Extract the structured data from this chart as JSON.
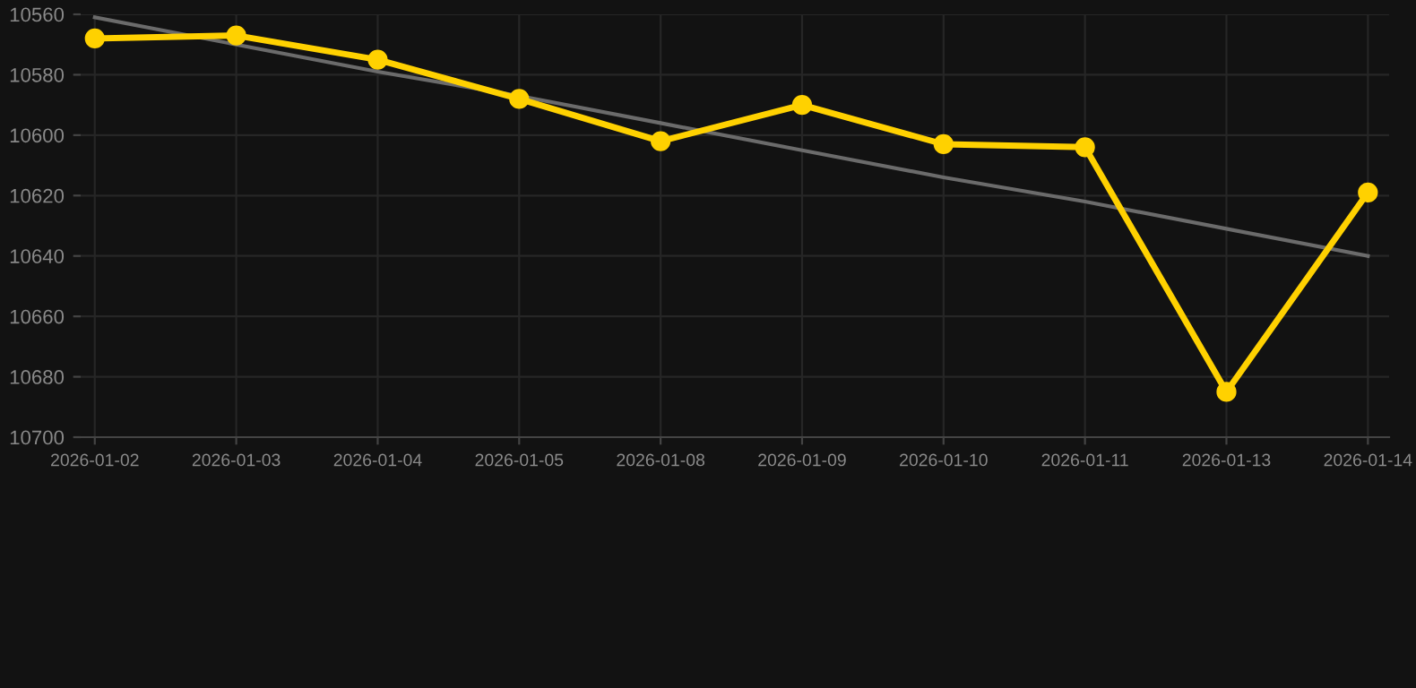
{
  "chart_data": {
    "type": "line",
    "categories": [
      "2026-01-02",
      "2026-01-03",
      "2026-01-04",
      "2026-01-05",
      "2026-01-08",
      "2026-01-09",
      "2026-01-10",
      "2026-01-11",
      "2026-01-13",
      "2026-01-14"
    ],
    "series": [
      {
        "color": "#ffd100",
        "values": [
          10568,
          10567,
          10575,
          10588,
          10602,
          10590,
          10603,
          10604,
          10685,
          10619
        ],
        "marker": "circle"
      },
      {
        "type": "line",
        "color": "#6b6b6b",
        "values": [
          10561,
          10570,
          10579,
          10587,
          10596,
          10605,
          10614,
          10622,
          10631,
          10640
        ],
        "marker": "none"
      }
    ],
    "ylim": [
      10700,
      10560
    ],
    "yticks": [
      10560,
      10580,
      10600,
      10620,
      10640,
      10660,
      10680,
      10700
    ],
    "grid": true
  }
}
